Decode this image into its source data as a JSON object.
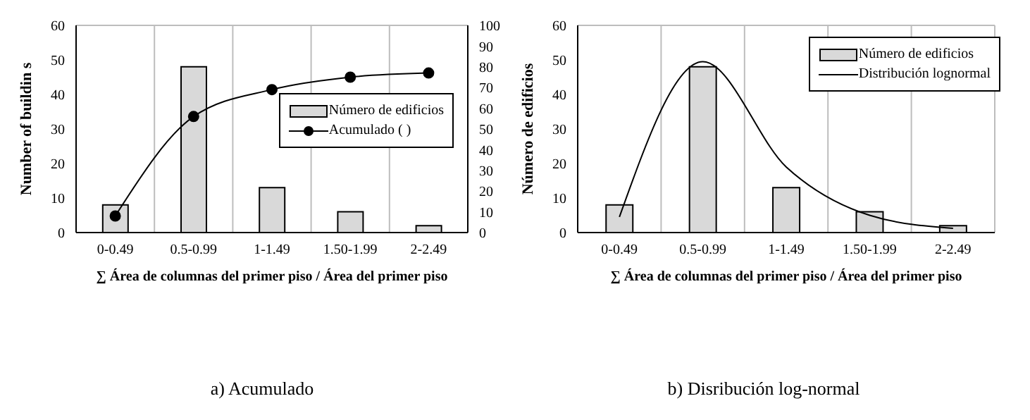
{
  "chart_data": [
    {
      "type": "bar",
      "title": "a) Acumulado",
      "xlabel": "∑ Área de columnas del primer piso / Área del primer piso",
      "ylabel": "Number of buildin s",
      "categories": [
        "0-0.49",
        "0.5-0.99",
        "1-1.49",
        "1.50-1.99",
        "2-2.49"
      ],
      "series": [
        {
          "name": "Número de edificios",
          "color": "#d9d9d9",
          "values": [
            8,
            48,
            13,
            6,
            2
          ]
        },
        {
          "name": "Acumulado (  )",
          "type": "line",
          "axis": "y2",
          "color": "#000000",
          "values": [
            8,
            56,
            69,
            75,
            77
          ]
        }
      ],
      "ylim": [
        0,
        60
      ],
      "yticks": [
        0,
        10,
        20,
        30,
        40,
        50,
        60
      ],
      "y2lim": [
        0,
        100
      ],
      "y2ticks": [
        0,
        10,
        20,
        30,
        40,
        50,
        60,
        70,
        80,
        90,
        100
      ],
      "grid": true,
      "legend": "right",
      "marker": "circle"
    },
    {
      "type": "bar",
      "title": "b) Disribución log-normal",
      "xlabel": "∑ Área de columnas del primer piso / Área del primer piso",
      "ylabel": "Número de edificios",
      "categories": [
        "0-0.49",
        "0.5-0.99",
        "1-1.49",
        "1.50-1.99",
        "2-2.49"
      ],
      "series": [
        {
          "name": "Número de edificios",
          "color": "#d9d9d9",
          "values": [
            8,
            48,
            13,
            6,
            2
          ]
        },
        {
          "name": "Distribución lognormal",
          "type": "line",
          "color": "#000000",
          "values": [
            4.5,
            49.5,
            19,
            5,
            1.2
          ]
        }
      ],
      "ylim": [
        0,
        60
      ],
      "yticks": [
        0,
        10,
        20,
        30,
        40,
        50,
        60
      ],
      "grid": true,
      "legend": "top right"
    }
  ]
}
